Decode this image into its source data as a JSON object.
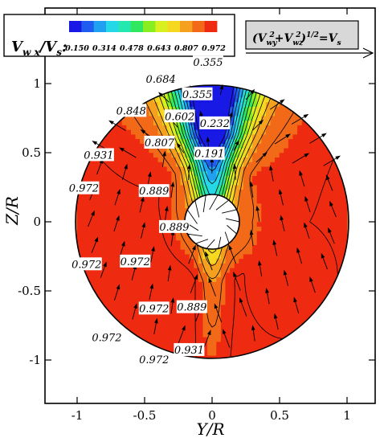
{
  "chart_data": {
    "type": "contour",
    "xlabel": "Y/R",
    "ylabel": "Z/R",
    "xlim": [
      -1.2,
      1.2
    ],
    "ylim": [
      -1.2,
      1.25
    ],
    "x_ticks": [
      "-1",
      "-0.5",
      "0",
      "0.5",
      "1"
    ],
    "y_ticks": [
      "1",
      "0.5",
      "0",
      "-0.5",
      "-1"
    ],
    "x_tick_values": [
      -1,
      -0.5,
      0,
      0.5,
      1
    ],
    "y_tick_values": [
      1,
      0.5,
      0,
      -0.5,
      -1
    ],
    "domain": {
      "shape": "disk",
      "radius": 1.0,
      "hub_radius": 0.2,
      "hub_center": [
        0,
        0.0
      ]
    },
    "colorbar": {
      "label": "V",
      "label_sub1": "w x",
      "label_mid": "/V",
      "label_sub2": "s",
      "label_end": ":",
      "ticks": [
        "0.150",
        "0.314",
        "0.478",
        "0.643",
        "0.807",
        "0.972"
      ],
      "tick_values": [
        0.15,
        0.314,
        0.478,
        0.643,
        0.807,
        0.972
      ],
      "range": [
        0.15,
        0.972
      ],
      "colors": [
        "#1919e6",
        "#1f5cf0",
        "#1fa0f0",
        "#25d8e8",
        "#25e8b0",
        "#30e860",
        "#88ee20",
        "#d8f020",
        "#f6d820",
        "#f6a020",
        "#f26a18",
        "#ee2a10"
      ]
    },
    "reference_vector": {
      "label": "(V",
      "sub1": "wy",
      "sup1": "2",
      "mid": "+V",
      "sub2": "wz",
      "sup2": "2",
      "end": ")",
      "sup3": "1/2",
      "eq": "=V",
      "sub3": "s",
      "magnitude": 1.0
    },
    "contour_labels": [
      {
        "x": -0.03,
        "y": 1.15,
        "text": "0.355"
      },
      {
        "x": -0.38,
        "y": 1.03,
        "text": "0.684"
      },
      {
        "x": -0.11,
        "y": 0.92,
        "text": "0.355"
      },
      {
        "x": -0.6,
        "y": 0.8,
        "text": "0.848"
      },
      {
        "x": -0.24,
        "y": 0.76,
        "text": "0.602"
      },
      {
        "x": 0.02,
        "y": 0.71,
        "text": "0.232"
      },
      {
        "x": -0.39,
        "y": 0.57,
        "text": "0.807"
      },
      {
        "x": -0.02,
        "y": 0.49,
        "text": "0.191"
      },
      {
        "x": -0.84,
        "y": 0.48,
        "text": "0.931"
      },
      {
        "x": -0.95,
        "y": 0.24,
        "text": "0.972"
      },
      {
        "x": -0.43,
        "y": 0.22,
        "text": "0.889"
      },
      {
        "x": -0.28,
        "y": -0.04,
        "text": "0.889"
      },
      {
        "x": -0.93,
        "y": -0.31,
        "text": "0.972"
      },
      {
        "x": -0.57,
        "y": -0.29,
        "text": "0.972"
      },
      {
        "x": -0.43,
        "y": -0.63,
        "text": "0.972"
      },
      {
        "x": -0.15,
        "y": -0.62,
        "text": "0.889"
      },
      {
        "x": -0.78,
        "y": -0.84,
        "text": "0.972"
      },
      {
        "x": -0.17,
        "y": -0.93,
        "text": "0.931"
      },
      {
        "x": -0.43,
        "y": -1.0,
        "text": "0.972"
      }
    ]
  }
}
